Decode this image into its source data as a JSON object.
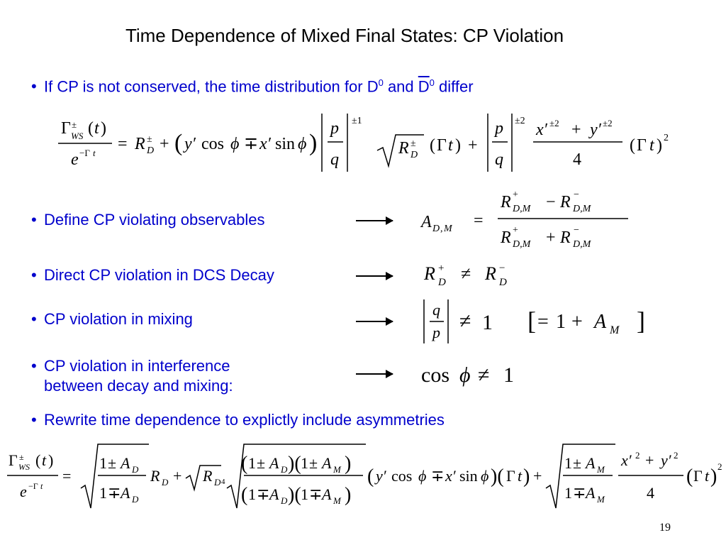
{
  "slide": {
    "title": "Time Dependence of Mixed Final States: CP Violation",
    "page_number": "19",
    "accent_color": "#0000cc",
    "bullets": [
      {
        "prefix": "If CP is not conserved, the time distribution for D",
        "sup1": "0",
        "mid": " and ",
        "dbar": "D",
        "sup2": "0",
        "suffix": " differ"
      },
      {
        "text": "Define CP violating observables"
      },
      {
        "text": "Direct CP violation in DCS Decay"
      },
      {
        "text": "CP violation in mixing"
      },
      {
        "line1": "CP violation in interference",
        "line2": "between decay and mixing:"
      },
      {
        "text": "Rewrite time dependence to explictly include asymmetries"
      }
    ],
    "equations": [
      {
        "name": "time-distribution"
      },
      {
        "name": "asymmetry-definition"
      },
      {
        "name": "direct-cp-violation"
      },
      {
        "name": "mixing-cp-violation"
      },
      {
        "name": "interference-cp-violation"
      },
      {
        "name": "rewritten-time-dependence"
      }
    ]
  }
}
